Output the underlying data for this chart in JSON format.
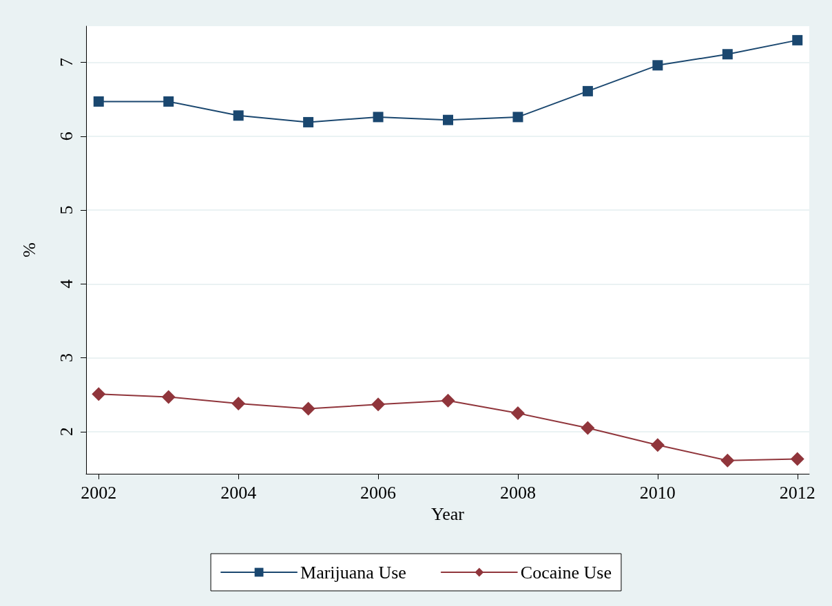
{
  "chart_data": {
    "type": "line",
    "xlabel": "Year",
    "ylabel": "%",
    "x": [
      2002,
      2003,
      2004,
      2005,
      2006,
      2007,
      2008,
      2009,
      2010,
      2011,
      2012
    ],
    "series": [
      {
        "name": "Marijuana Use",
        "color": "#1a476f",
        "marker": "square",
        "values": [
          6.47,
          6.47,
          6.28,
          6.19,
          6.26,
          6.22,
          6.26,
          6.61,
          6.96,
          7.11,
          7.3
        ]
      },
      {
        "name": "Cocaine Use",
        "color": "#90353b",
        "marker": "diamond",
        "values": [
          2.51,
          2.47,
          2.38,
          2.31,
          2.37,
          2.42,
          2.25,
          2.05,
          1.82,
          1.61,
          1.63
        ]
      }
    ],
    "xlim": [
      2001.82,
      2012.17
    ],
    "xticks": [
      2002,
      2004,
      2006,
      2008,
      2010,
      2012
    ],
    "ylim": [
      1.43,
      7.49
    ],
    "yticks": [
      2,
      3,
      4,
      5,
      6,
      7
    ],
    "grid": "y",
    "legend": "bottom",
    "line_style": "solid"
  }
}
